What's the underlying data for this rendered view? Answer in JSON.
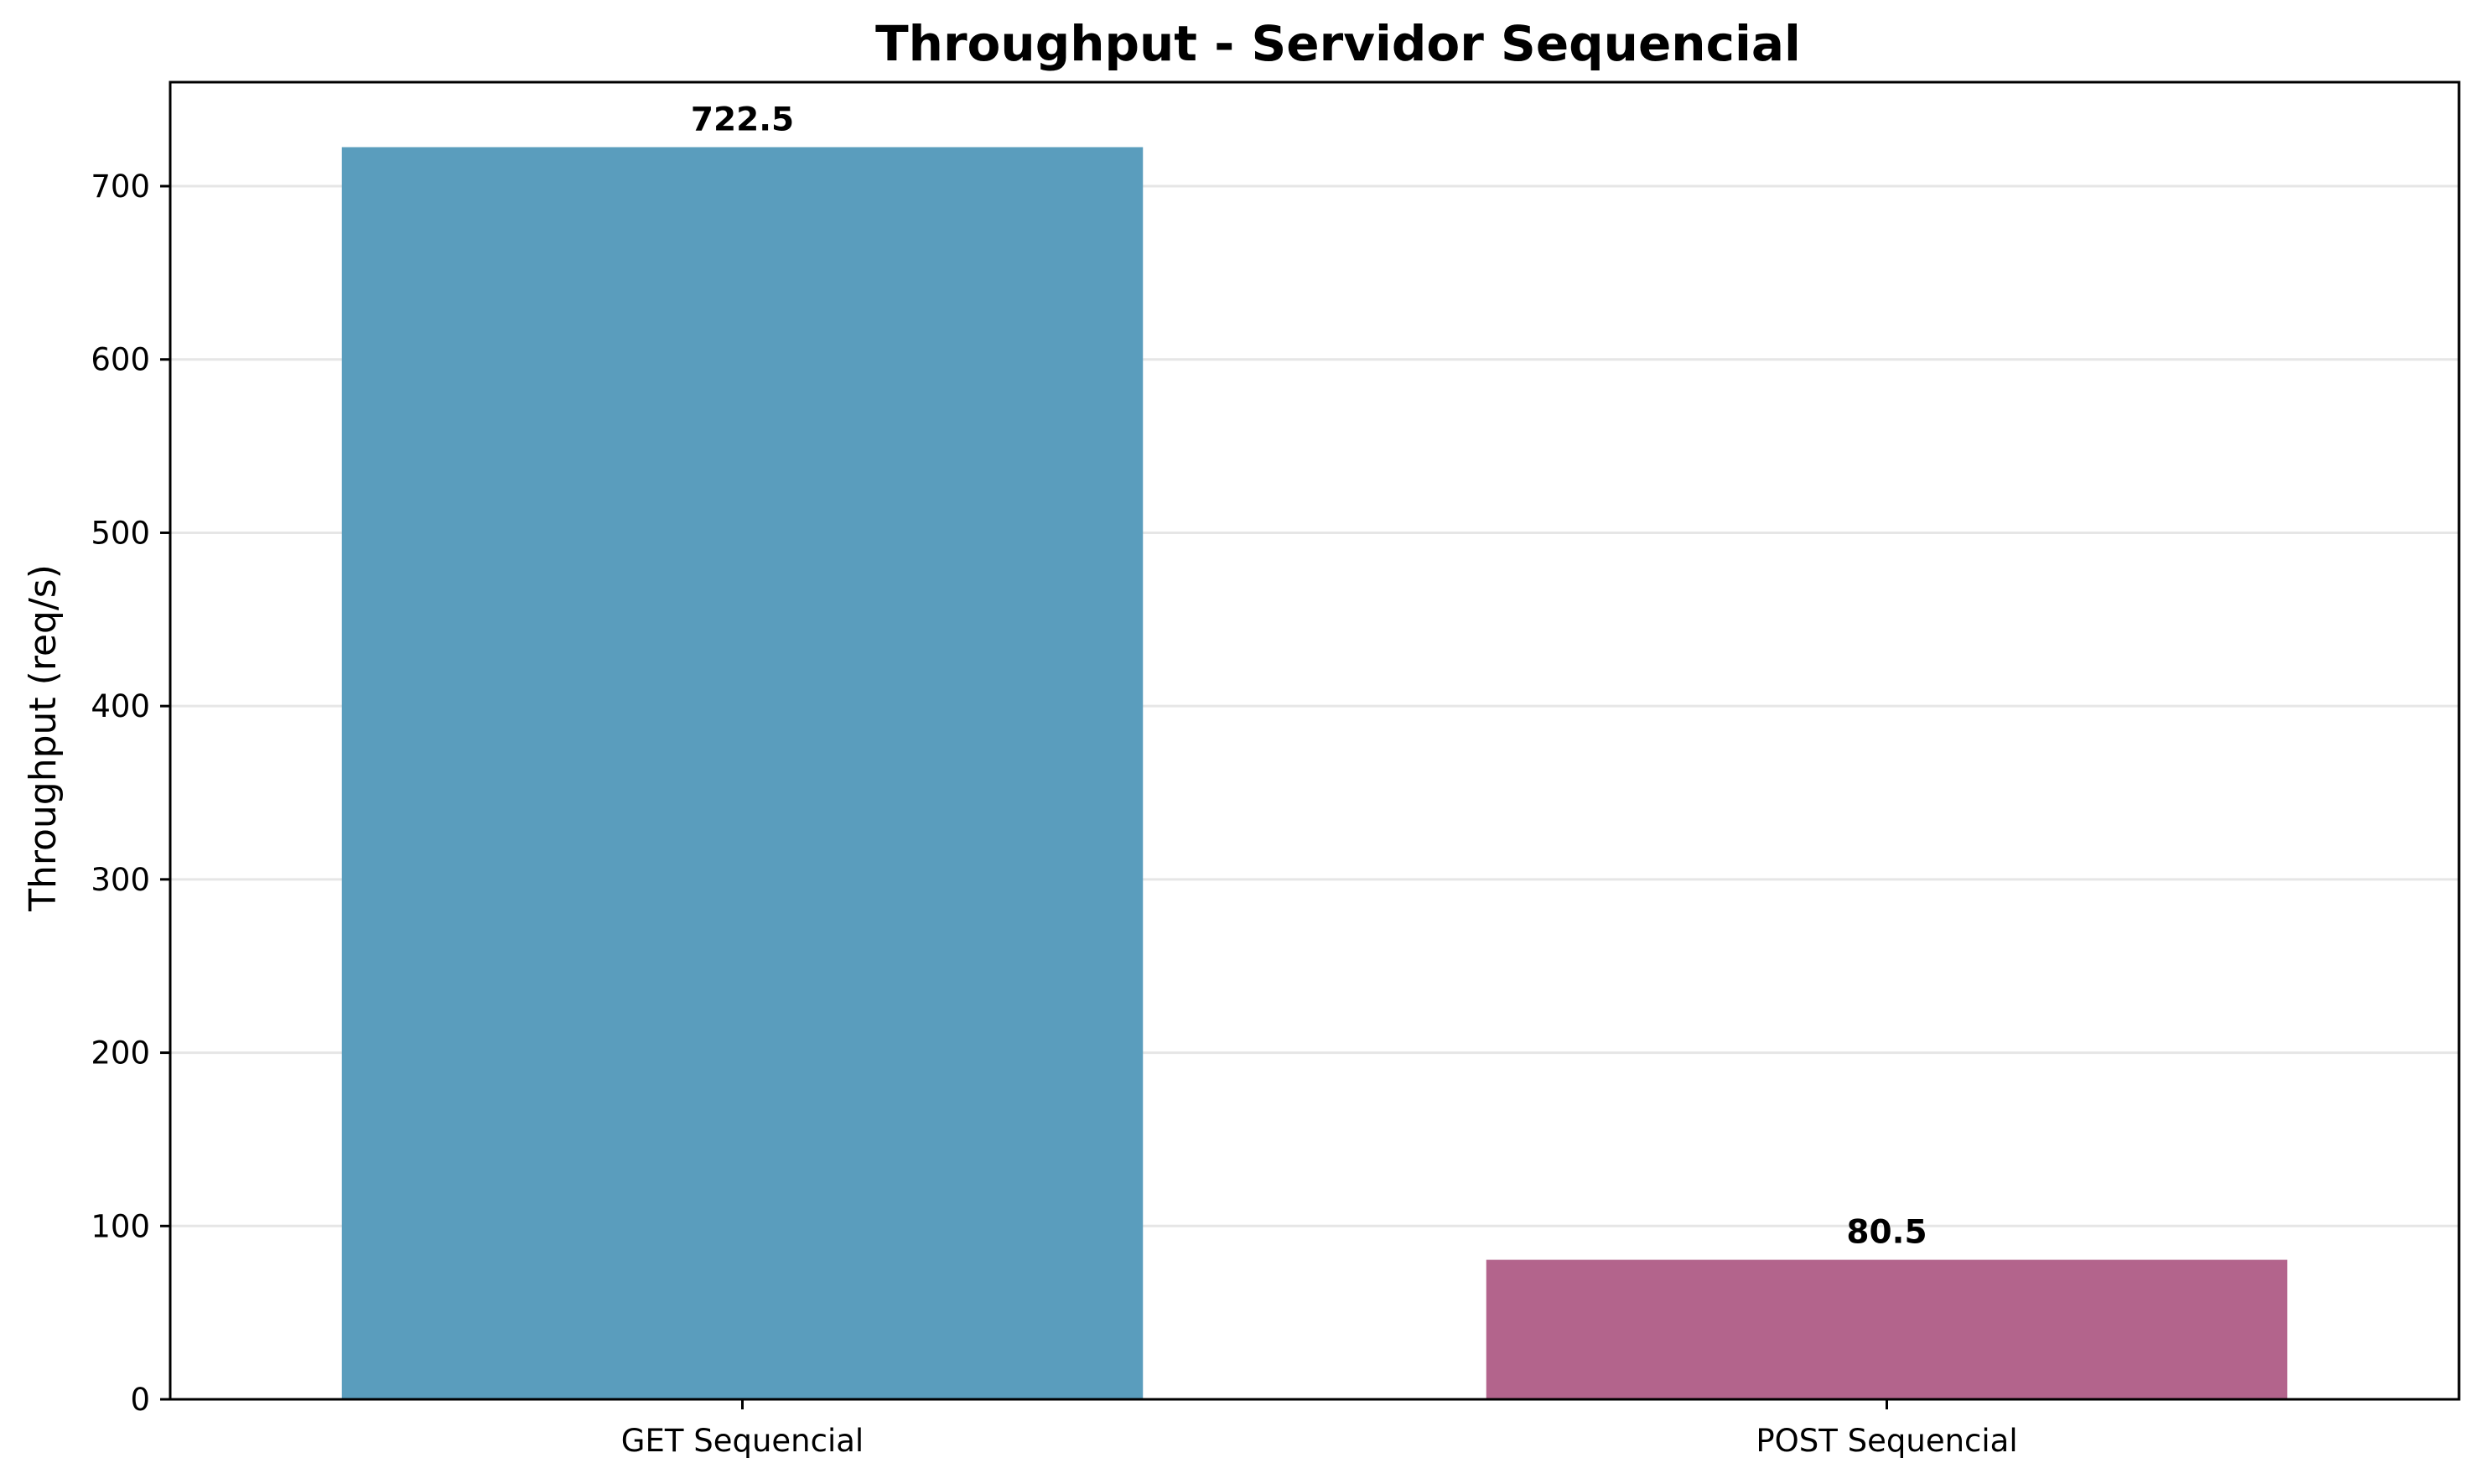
{
  "chart_data": {
    "type": "bar",
    "title": "Throughput - Servidor Sequencial",
    "xlabel": "",
    "ylabel": "Throughput (req/s)",
    "categories": [
      "GET Sequencial",
      "POST Sequencial"
    ],
    "values": [
      722.5,
      80.5
    ],
    "value_labels": [
      "722.5",
      "80.5"
    ],
    "colors": [
      "#5a9dbd",
      "#b3648c"
    ],
    "ylim": [
      0,
      760
    ],
    "yticks": [
      0,
      100,
      200,
      300,
      400,
      500,
      600,
      700
    ],
    "ytick_labels": [
      "0",
      "100",
      "200",
      "300",
      "400",
      "500",
      "600",
      "700"
    ],
    "grid": "y-major",
    "legend": "none"
  }
}
